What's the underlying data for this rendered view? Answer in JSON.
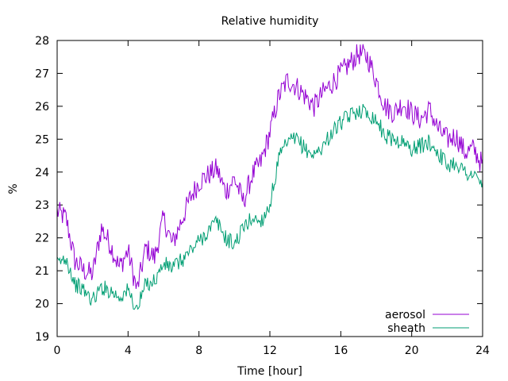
{
  "chart_data": {
    "type": "line",
    "title": "Relative humidity",
    "xlabel": "Time [hour]",
    "ylabel": "%",
    "xlim": [
      0,
      24
    ],
    "ylim": [
      19,
      28
    ],
    "xticks": [
      0,
      4,
      8,
      12,
      16,
      20,
      24
    ],
    "yticks": [
      19,
      20,
      21,
      22,
      23,
      24,
      25,
      26,
      27,
      28
    ],
    "grid": false,
    "legend_position": "bottom-right",
    "series": [
      {
        "name": "aerosol",
        "color": "#9400d3",
        "x": [
          0,
          0.5,
          1,
          1.5,
          2,
          2.5,
          3,
          3.5,
          4,
          4.5,
          5,
          5.5,
          6,
          6.5,
          7,
          7.5,
          8,
          8.5,
          9,
          9.5,
          10,
          10.5,
          11,
          11.5,
          12,
          12.5,
          13,
          13.5,
          14,
          14.5,
          15,
          15.5,
          16,
          16.5,
          17,
          17.5,
          18,
          18.5,
          19,
          19.5,
          20,
          20.5,
          21,
          21.5,
          22,
          22.5,
          23,
          23.5,
          24
        ],
        "y": [
          22.8,
          22.6,
          21.3,
          21.0,
          20.9,
          22.3,
          21.8,
          21.1,
          21.6,
          20.4,
          21.7,
          21.4,
          22.6,
          21.8,
          22.5,
          23.2,
          23.7,
          23.9,
          24.1,
          23.4,
          23.8,
          23.1,
          23.9,
          24.3,
          25.2,
          26.3,
          26.8,
          26.6,
          26.3,
          26.0,
          26.4,
          26.7,
          27.0,
          27.3,
          27.6,
          27.5,
          26.8,
          26.0,
          25.8,
          26.1,
          25.8,
          25.6,
          25.9,
          25.3,
          25.0,
          25.1,
          24.6,
          24.7,
          24.2
        ],
        "noise": 0.35
      },
      {
        "name": "sheath",
        "color": "#009e73",
        "x": [
          0,
          0.5,
          1,
          1.5,
          2,
          2.5,
          3,
          3.5,
          4,
          4.5,
          5,
          5.5,
          6,
          6.5,
          7,
          7.5,
          8,
          8.5,
          9,
          9.5,
          10,
          10.5,
          11,
          11.5,
          12,
          12.5,
          13,
          13.5,
          14,
          14.5,
          15,
          15.5,
          16,
          16.5,
          17,
          17.5,
          18,
          18.5,
          19,
          19.5,
          20,
          20.5,
          21,
          21.5,
          22,
          22.5,
          23,
          23.5,
          24
        ],
        "y": [
          21.2,
          21.4,
          20.6,
          20.4,
          20.1,
          20.5,
          20.4,
          20.2,
          20.4,
          19.8,
          20.6,
          20.7,
          21.2,
          21.1,
          21.3,
          21.6,
          21.9,
          22.2,
          22.5,
          22.0,
          21.8,
          22.3,
          22.6,
          22.5,
          23.0,
          24.4,
          24.9,
          25.0,
          24.7,
          24.5,
          24.8,
          25.2,
          25.5,
          25.7,
          25.9,
          25.8,
          25.6,
          25.1,
          25.0,
          24.9,
          24.7,
          24.8,
          24.9,
          24.6,
          24.2,
          24.3,
          24.0,
          23.9,
          23.6
        ],
        "noise": 0.25
      }
    ]
  }
}
